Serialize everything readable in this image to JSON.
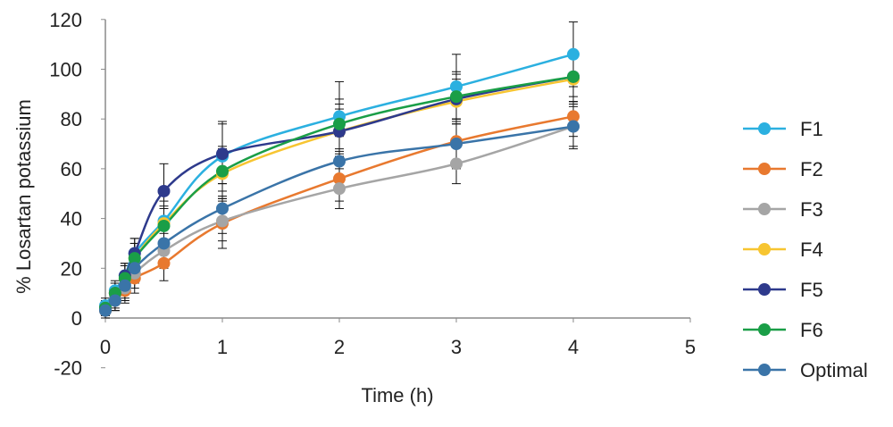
{
  "chart_data": {
    "type": "line",
    "xlabel": "Time (h)",
    "ylabel": "% Losartan potassium",
    "xlim": [
      0,
      5
    ],
    "ylim": [
      -20,
      120
    ],
    "xticks": [
      "0",
      "1",
      "2",
      "3",
      "4",
      "5"
    ],
    "yticks": [
      "-20",
      "0",
      "20",
      "40",
      "60",
      "80",
      "100",
      "120"
    ],
    "grid": false,
    "legend_position": "right",
    "x": [
      0,
      0.083,
      0.167,
      0.25,
      0.5,
      1,
      2,
      3,
      4
    ],
    "series": [
      {
        "name": "F1",
        "color": "#2BB0E0",
        "values": [
          5,
          11,
          17,
          26,
          39,
          65,
          81,
          93,
          106
        ],
        "errors": [
          3,
          4,
          5,
          6,
          8,
          14,
          14,
          13,
          13
        ]
      },
      {
        "name": "F2",
        "color": "#E8792F",
        "values": [
          3,
          7,
          11,
          16,
          22,
          38,
          56,
          71,
          81
        ],
        "errors": [
          3,
          4,
          5,
          6,
          7,
          10,
          9,
          9,
          8
        ]
      },
      {
        "name": "F3",
        "color": "#A5A5A5",
        "values": [
          4,
          8,
          12,
          18,
          27,
          39,
          52,
          62,
          77
        ],
        "errors": [
          3,
          4,
          5,
          6,
          7,
          8,
          8,
          8,
          8
        ]
      },
      {
        "name": "F4",
        "color": "#F7C531",
        "values": [
          4,
          10,
          16,
          24,
          38,
          58,
          75,
          87,
          96
        ],
        "errors": [
          3,
          4,
          5,
          6,
          7,
          10,
          9,
          9,
          9
        ]
      },
      {
        "name": "F5",
        "color": "#2E3A8C",
        "values": [
          4,
          10,
          17,
          26,
          51,
          66,
          75,
          88,
          97
        ],
        "errors": [
          3,
          4,
          5,
          6,
          11,
          12,
          11,
          10,
          10
        ]
      },
      {
        "name": "F6",
        "color": "#1A9E47",
        "values": [
          4,
          10,
          16,
          24,
          37,
          59,
          78,
          89,
          97
        ],
        "errors": [
          3,
          4,
          5,
          6,
          7,
          10,
          10,
          10,
          10
        ]
      },
      {
        "name": "Optimal",
        "color": "#3A74A8",
        "values": [
          3,
          7,
          13,
          20,
          30,
          44,
          63,
          70,
          77
        ],
        "errors": [
          3,
          4,
          5,
          6,
          8,
          10,
          10,
          10,
          9
        ]
      }
    ]
  }
}
